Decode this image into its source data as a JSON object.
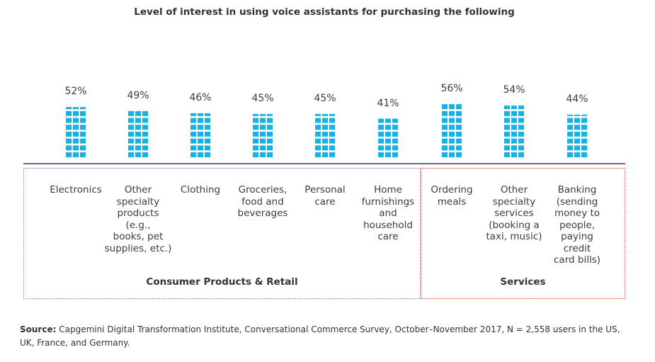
{
  "chart_data": {
    "type": "bar",
    "title": "Level of interest in using voice assistants for purchasing the following",
    "categories": [
      "Electronics",
      "Other specialty products (e.g., books, pet supplies, etc.)",
      "Clothing",
      "Groceries, food and beverages",
      "Personal care",
      "Home furnishings and household care",
      "Ordering meals",
      "Other specialty services (booking a taxi, music)",
      "Banking (sending money to people, paying credit card bills)"
    ],
    "values": [
      52,
      49,
      46,
      45,
      45,
      41,
      56,
      54,
      44
    ],
    "value_labels": [
      "52%",
      "49%",
      "46%",
      "45%",
      "45%",
      "41%",
      "56%",
      "54%",
      "44%"
    ],
    "groups": [
      {
        "name": "Consumer Products & Retail",
        "count": 6
      },
      {
        "name": "Services",
        "count": 3
      }
    ],
    "unit": "%",
    "bar_color": "#17b2e4",
    "axis_color": "#3d3060",
    "group_border_color": "#d9534f"
  },
  "category_lines": [
    [
      "Electronics"
    ],
    [
      "Other",
      "specialty",
      "products (e.g.,",
      "books, pet",
      "supplies, etc.)"
    ],
    [
      "Clothing"
    ],
    [
      "Groceries,",
      "food and",
      "beverages"
    ],
    [
      "Personal",
      "care"
    ],
    [
      "Home",
      "furnishings",
      "and",
      "household",
      "care"
    ],
    [
      "Ordering",
      "meals"
    ],
    [
      "Other",
      "specialty",
      "services",
      "(booking a",
      "taxi, music)"
    ],
    [
      "Banking",
      "(sending",
      "money to",
      "people,",
      "paying",
      "credit",
      "card bills)"
    ]
  ],
  "source": {
    "label": "Source:",
    "text": " Capgemini Digital Transformation Institute, Conversational Commerce Survey, October–November 2017, N = 2,558 users in the US, UK, France, and Germany."
  }
}
